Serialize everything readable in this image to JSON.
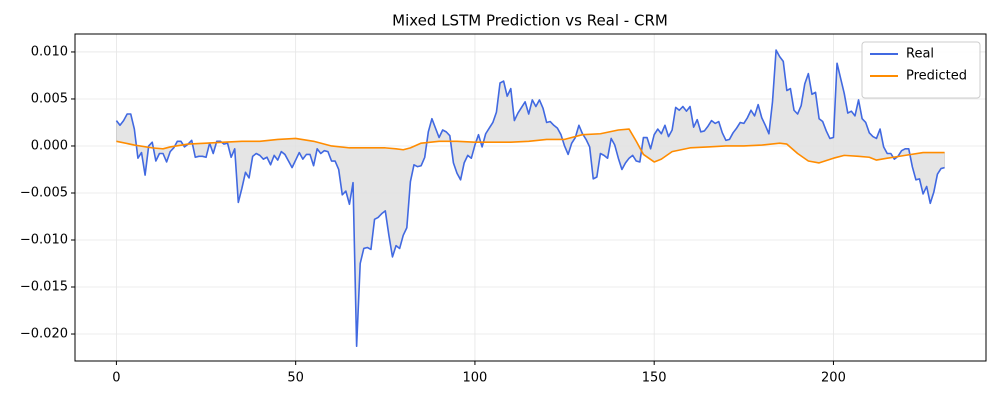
{
  "chart_data": {
    "type": "line",
    "title": "Mixed LSTM Prediction vs Real - CRM",
    "xlim": [
      -11.55,
      242.55
    ],
    "xticks": [
      0,
      50,
      100,
      150,
      200
    ],
    "ylim": [
      -0.02287,
      0.01191
    ],
    "yticks": [
      {
        "value": 0.01,
        "label": "0.010"
      },
      {
        "value": 0.005,
        "label": "0.005"
      },
      {
        "value": 0,
        "label": "0.000"
      },
      {
        "value": -0.005,
        "label": "−0.005"
      },
      {
        "value": -0.01,
        "label": "−0.010"
      },
      {
        "value": -0.015,
        "label": "−0.015"
      },
      {
        "value": -0.02,
        "label": "−0.020"
      }
    ],
    "grid": true,
    "legend": "upper right",
    "fill_between": "#e0e0e0",
    "series": [
      {
        "name": "Real",
        "color": "#4169e1",
        "x": [
          0,
          1,
          2,
          3,
          4,
          5,
          6,
          7,
          8,
          9,
          10,
          11,
          12,
          13,
          14,
          15,
          16,
          17,
          18,
          19,
          20,
          21,
          22,
          23,
          24,
          25,
          26,
          27,
          28,
          29,
          30,
          31,
          32,
          33,
          34,
          35,
          36,
          37,
          38,
          39,
          40,
          41,
          42,
          43,
          44,
          45,
          46,
          47,
          48,
          49,
          50,
          51,
          52,
          53,
          54,
          55,
          56,
          57,
          58,
          59,
          60,
          61,
          62,
          63,
          64,
          65,
          66,
          67,
          68,
          69,
          70,
          71,
          72,
          73,
          74,
          75,
          76,
          77,
          78,
          79,
          80,
          81,
          82,
          83,
          84,
          85,
          86,
          87,
          88,
          89,
          90,
          91,
          92,
          93,
          94,
          95,
          96,
          97,
          98,
          99,
          100,
          101,
          102,
          103,
          104,
          105,
          106,
          107,
          108,
          109,
          110,
          111,
          112,
          113,
          114,
          115,
          116,
          117,
          118,
          119,
          120,
          121,
          122,
          123,
          124,
          125,
          126,
          127,
          128,
          129,
          130,
          131,
          132,
          133,
          134,
          135,
          136,
          137,
          138,
          139,
          140,
          141,
          142,
          143,
          144,
          145,
          146,
          147,
          148,
          149,
          150,
          151,
          152,
          153,
          154,
          155,
          156,
          157,
          158,
          159,
          160,
          161,
          162,
          163,
          164,
          165,
          166,
          167,
          168,
          169,
          170,
          171,
          172,
          173,
          174,
          175,
          176,
          177,
          178,
          179,
          180,
          181,
          182,
          183,
          184,
          185,
          186,
          187,
          188,
          189,
          190,
          191,
          192,
          193,
          194,
          195,
          196,
          197,
          198,
          199,
          200,
          201,
          202,
          203,
          204,
          205,
          206,
          207,
          208,
          209,
          210,
          211,
          212,
          213,
          214,
          215,
          216,
          217,
          218,
          219,
          220,
          221,
          222,
          223,
          224,
          225,
          226,
          227,
          228,
          229,
          230,
          231
        ],
        "values": [
          0.0027,
          0.0022,
          0.0027,
          0.0034,
          0.0034,
          0.0018,
          -0.0013,
          -0.0007,
          -0.0031,
          0.0,
          0.0004,
          -0.0016,
          -0.0008,
          -0.0008,
          -0.0017,
          -0.0006,
          -0.0002,
          0.0005,
          0.0005,
          -0.0001,
          0.0002,
          0.0006,
          -0.0012,
          -0.0011,
          -0.0011,
          -0.0012,
          0.0003,
          -0.0008,
          0.0005,
          0.0005,
          0.0002,
          0.0003,
          -0.0012,
          -0.0003,
          -0.006,
          -0.0045,
          -0.0028,
          -0.0034,
          -0.0011,
          -0.0008,
          -0.001,
          -0.0014,
          -0.0012,
          -0.002,
          -0.001,
          -0.0015,
          -0.0006,
          -0.0009,
          -0.0016,
          -0.0023,
          -0.0015,
          -0.0007,
          -0.0014,
          -0.0009,
          -0.0009,
          -0.0021,
          -0.0003,
          -0.0008,
          -0.0005,
          -0.0006,
          -0.0016,
          -0.0016,
          -0.0025,
          -0.0052,
          -0.0048,
          -0.0062,
          -0.0039,
          -0.0213,
          -0.0125,
          -0.0109,
          -0.0108,
          -0.011,
          -0.0078,
          -0.0076,
          -0.0072,
          -0.0069,
          -0.0095,
          -0.0118,
          -0.0106,
          -0.0109,
          -0.0095,
          -0.0087,
          -0.0038,
          -0.002,
          -0.0022,
          -0.0021,
          -0.0012,
          0.0015,
          0.0029,
          0.0019,
          0.0009,
          0.0017,
          0.0015,
          0.0011,
          -0.0018,
          -0.0029,
          -0.0036,
          -0.0018,
          -0.001,
          -0.0013,
          0.0001,
          0.0012,
          -0.0001,
          0.0013,
          0.0019,
          0.0025,
          0.0036,
          0.0067,
          0.0069,
          0.0053,
          0.0061,
          0.0027,
          0.0035,
          0.0041,
          0.0047,
          0.0034,
          0.0049,
          0.0042,
          0.0049,
          0.004,
          0.0025,
          0.0026,
          0.0022,
          0.0019,
          0.0012,
          0.0,
          -0.0009,
          0.0003,
          0.0009,
          0.0022,
          0.0013,
          0.0007,
          -0.0001,
          -0.0035,
          -0.0033,
          -0.0008,
          -0.001,
          -0.0013,
          0.0008,
          0.0001,
          -0.0013,
          -0.0025,
          -0.0018,
          -0.0013,
          -0.001,
          -0.0016,
          -0.0017,
          0.0009,
          0.0009,
          -0.0003,
          0.0012,
          0.0018,
          0.0013,
          0.0022,
          0.001,
          0.0017,
          0.0041,
          0.0038,
          0.0042,
          0.0037,
          0.0042,
          0.002,
          0.0028,
          0.0015,
          0.0016,
          0.0021,
          0.0027,
          0.0024,
          0.0026,
          0.0014,
          0.0006,
          0.0007,
          0.0014,
          0.0019,
          0.0025,
          0.0024,
          0.003,
          0.0038,
          0.0032,
          0.0044,
          0.003,
          0.0022,
          0.0013,
          0.0047,
          0.0102,
          0.0095,
          0.009,
          0.0059,
          0.0061,
          0.0038,
          0.0034,
          0.0043,
          0.0066,
          0.0077,
          0.0055,
          0.0057,
          0.0029,
          0.0026,
          0.0016,
          0.0008,
          0.0009,
          0.0088,
          0.0072,
          0.0056,
          0.0035,
          0.0037,
          0.0032,
          0.0049,
          0.0029,
          0.0025,
          0.0014,
          0.001,
          0.0008,
          0.0018,
          -0.0001,
          -0.0008,
          -0.0008,
          -0.0014,
          -0.0011,
          -0.0005,
          -0.0003,
          -0.0003,
          -0.0022,
          -0.0036,
          -0.0035,
          -0.0051,
          -0.0043,
          -0.0061,
          -0.0049,
          -0.003,
          -0.0024,
          -0.0023
        ]
      },
      {
        "name": "Predicted",
        "color": "#ff8c00",
        "x": [
          0,
          5,
          10,
          13,
          15,
          20,
          25,
          30,
          35,
          40,
          45,
          50,
          55,
          60,
          65,
          70,
          75,
          78,
          80,
          82,
          85,
          90,
          95,
          100,
          105,
          110,
          115,
          120,
          125,
          130,
          135,
          140,
          143,
          145,
          147,
          150,
          152,
          155,
          160,
          165,
          170,
          175,
          180,
          185,
          187,
          190,
          193,
          196,
          200,
          203,
          207,
          210,
          212,
          215,
          220,
          225,
          231
        ],
        "values": [
          0.0005,
          0.0001,
          -0.0002,
          -0.0003,
          -0.0001,
          0.0002,
          0.0003,
          0.0004,
          0.0005,
          0.0005,
          0.0007,
          0.0008,
          0.0005,
          0.0,
          -0.0002,
          -0.0002,
          -0.0002,
          -0.0003,
          -0.0004,
          -0.0002,
          0.0003,
          0.0005,
          0.0005,
          0.0004,
          0.0004,
          0.0004,
          0.0005,
          0.0007,
          0.0007,
          0.0012,
          0.0013,
          0.0017,
          0.0018,
          0.0005,
          -0.0009,
          -0.0017,
          -0.0014,
          -0.0006,
          -0.0002,
          -0.0001,
          0.0,
          0.0,
          0.0001,
          0.0003,
          0.0002,
          -0.0008,
          -0.0016,
          -0.0018,
          -0.0013,
          -0.001,
          -0.0011,
          -0.0012,
          -0.0015,
          -0.0013,
          -0.001,
          -0.0007,
          -0.0007
        ]
      }
    ]
  }
}
